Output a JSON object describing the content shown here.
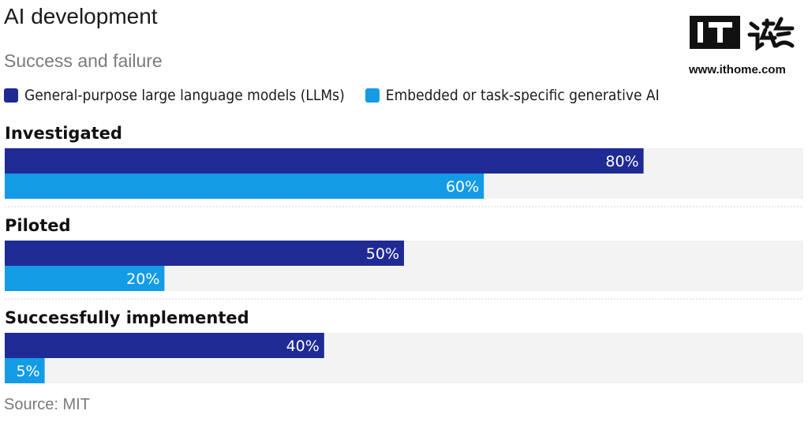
{
  "title": "AI development",
  "subtitle": "Success and failure",
  "source": "Source: MIT",
  "brand": {
    "text": "IT之家",
    "url": "www.ithome.com"
  },
  "colors": {
    "llm": "#1f2a94",
    "embedded": "#139be6",
    "track": "#f3f3f3",
    "divider": "#d6d6d6"
  },
  "chart_data": {
    "type": "bar",
    "orientation": "horizontal",
    "categories": [
      "Investigated",
      "Piloted",
      "Successfully implemented"
    ],
    "series": [
      {
        "name": "General-purpose large language models (LLMs)",
        "values": [
          80,
          50,
          40
        ]
      },
      {
        "name": "Embedded or task-specific generative AI",
        "values": [
          60,
          20,
          5
        ]
      }
    ],
    "value_labels": [
      [
        "80%",
        "50%",
        "40%"
      ],
      [
        "60%",
        "20%",
        "5%"
      ]
    ],
    "xlim": [
      0,
      100
    ],
    "unit": "%",
    "legend": "top-left",
    "grid": false
  }
}
